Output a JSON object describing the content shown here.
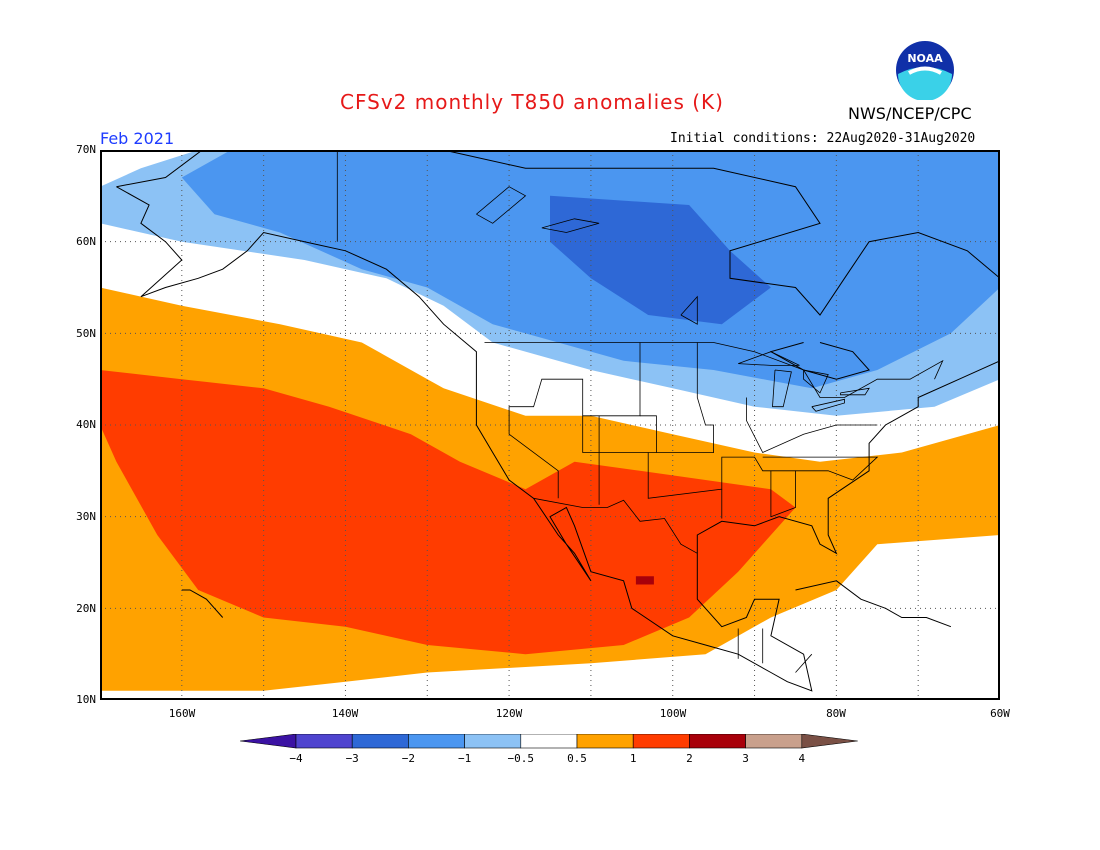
{
  "header": {
    "title": "CFSv2 monthly T850 anomalies (K)",
    "organization": "NWS/NCEP/CPC",
    "logo_text": "NOAA",
    "period": "Feb 2021",
    "initial_conditions": "Initial conditions: 22Aug2020-31Aug2020"
  },
  "axes": {
    "lat_labels": [
      "70N",
      "60N",
      "50N",
      "40N",
      "30N",
      "20N",
      "10N"
    ],
    "lon_labels": [
      "160W",
      "140W",
      "120W",
      "100W",
      "80W",
      "60W"
    ]
  },
  "colorbar": {
    "tick_labels": [
      "−4",
      "−3",
      "−2",
      "−1",
      "−0.5",
      "0.5",
      "1",
      "2",
      "3",
      "4"
    ],
    "colors": [
      "#3b12a3",
      "#4f44cf",
      "#2e68d6",
      "#4b96f0",
      "#8cc2f5",
      "#ffffff",
      "#ffa200",
      "#ff3c00",
      "#a8000a",
      "#c9a08c",
      "#7a5045"
    ]
  },
  "map_data": {
    "domain": {
      "lon": [
        -170,
        -60
      ],
      "lat": [
        10,
        70
      ]
    },
    "fill_color_by_level": {
      "n3": "#2e68d6",
      "n2": "#4b96f0",
      "n1": "#8cc2f5",
      "neutral": "#ffffff",
      "p1": "#ffa200",
      "p2": "#ff3c00",
      "p3": "#a8000a"
    },
    "anomaly_regions": [
      {
        "level": "n1",
        "polygon": [
          [
            -158,
            70
          ],
          [
            -60,
            70
          ],
          [
            -60,
            45
          ],
          [
            -68,
            42
          ],
          [
            -80,
            41
          ],
          [
            -90,
            42
          ],
          [
            -100,
            44
          ],
          [
            -110,
            46
          ],
          [
            -122,
            49
          ],
          [
            -128,
            53
          ],
          [
            -135,
            56
          ],
          [
            -145,
            58
          ],
          [
            -160,
            60
          ],
          [
            -170,
            62
          ],
          [
            -170,
            66
          ],
          [
            -165,
            68
          ]
        ]
      },
      {
        "level": "n2",
        "polygon": [
          [
            -154,
            70
          ],
          [
            -60,
            70
          ],
          [
            -60,
            55
          ],
          [
            -66,
            50
          ],
          [
            -75,
            46
          ],
          [
            -83,
            44
          ],
          [
            -95,
            46
          ],
          [
            -106,
            47
          ],
          [
            -114,
            49
          ],
          [
            -122,
            51
          ],
          [
            -130,
            55
          ],
          [
            -138,
            57
          ],
          [
            -148,
            61
          ],
          [
            -156,
            63
          ],
          [
            -160,
            67
          ]
        ]
      },
      {
        "level": "n3",
        "polygon": [
          [
            -115,
            65
          ],
          [
            -98,
            64
          ],
          [
            -93,
            59
          ],
          [
            -88,
            55
          ],
          [
            -94,
            51
          ],
          [
            -103,
            52
          ],
          [
            -110,
            56
          ],
          [
            -115,
            60
          ]
        ]
      },
      {
        "level": "p1",
        "polygon": [
          [
            -170,
            55
          ],
          [
            -160,
            53
          ],
          [
            -148,
            51
          ],
          [
            -138,
            49
          ],
          [
            -128,
            44
          ],
          [
            -118,
            41
          ],
          [
            -110,
            41
          ],
          [
            -100,
            39
          ],
          [
            -90,
            37
          ],
          [
            -82,
            36
          ],
          [
            -72,
            37
          ],
          [
            -60,
            40
          ],
          [
            -60,
            28
          ],
          [
            -75,
            27
          ],
          [
            -80,
            22
          ],
          [
            -88,
            19
          ],
          [
            -96,
            15
          ],
          [
            -110,
            14
          ],
          [
            -130,
            13
          ],
          [
            -140,
            12
          ],
          [
            -150,
            11
          ],
          [
            -170,
            11
          ]
        ]
      },
      {
        "level": "p2",
        "polygon": [
          [
            -170,
            46
          ],
          [
            -160,
            45
          ],
          [
            -150,
            44
          ],
          [
            -142,
            42
          ],
          [
            -132,
            39
          ],
          [
            -126,
            36
          ],
          [
            -118,
            33
          ],
          [
            -112,
            36
          ],
          [
            -104,
            35
          ],
          [
            -96,
            34
          ],
          [
            -88,
            33
          ],
          [
            -85,
            31
          ],
          [
            -88,
            28
          ],
          [
            -92,
            24
          ],
          [
            -98,
            19
          ],
          [
            -106,
            16
          ],
          [
            -118,
            15
          ],
          [
            -130,
            16
          ],
          [
            -140,
            18
          ],
          [
            -150,
            19
          ],
          [
            -158,
            22
          ],
          [
            -163,
            28
          ],
          [
            -168,
            36
          ],
          [
            -170,
            40
          ]
        ]
      },
      {
        "level": "p3",
        "polygon": [
          [
            -104.5,
            23.5
          ],
          [
            -102.3,
            23.5
          ],
          [
            -102.3,
            22.6
          ],
          [
            -104.5,
            22.6
          ]
        ]
      }
    ],
    "coastlines": [
      [
        [
          -168,
          66
        ],
        [
          -162,
          67
        ],
        [
          -156,
          71
        ],
        [
          -140,
          70
        ],
        [
          -128,
          70
        ],
        [
          -118,
          68
        ],
        [
          -105,
          68
        ],
        [
          -95,
          68
        ],
        [
          -85,
          66
        ],
        [
          -82,
          62
        ],
        [
          -93,
          59
        ],
        [
          -93,
          56
        ],
        [
          -85,
          55
        ],
        [
          -82,
          52
        ],
        [
          -79,
          56
        ],
        [
          -76,
          60
        ],
        [
          -70,
          61
        ],
        [
          -64,
          59
        ],
        [
          -60,
          56
        ],
        [
          -57,
          52
        ],
        [
          -60,
          47
        ],
        [
          -65,
          45
        ],
        [
          -70,
          43
        ],
        [
          -70,
          42
        ],
        [
          -74,
          40
        ],
        [
          -76,
          38
        ],
        [
          -76,
          35
        ],
        [
          -81,
          32
        ],
        [
          -81,
          28
        ],
        [
          -80,
          26
        ],
        [
          -82,
          27
        ],
        [
          -83,
          29
        ],
        [
          -87,
          30
        ],
        [
          -90,
          29
        ],
        [
          -94,
          29.5
        ],
        [
          -97,
          28
        ],
        [
          -97,
          25
        ],
        [
          -97,
          21
        ],
        [
          -94,
          18
        ],
        [
          -91,
          19
        ],
        [
          -90,
          21
        ],
        [
          -87,
          21
        ],
        [
          -88,
          17
        ],
        [
          -84,
          15
        ],
        [
          -83,
          11
        ],
        [
          -86,
          12
        ],
        [
          -88,
          13
        ],
        [
          -92,
          15
        ],
        [
          -96,
          16
        ],
        [
          -100,
          17
        ],
        [
          -105,
          20
        ],
        [
          -106,
          23
        ],
        [
          -110,
          24
        ],
        [
          -112,
          29
        ],
        [
          -113,
          31
        ],
        [
          -115,
          30
        ],
        [
          -113,
          27
        ],
        [
          -110,
          23
        ],
        [
          -112,
          26
        ],
        [
          -114,
          28
        ],
        [
          -117,
          32
        ],
        [
          -120,
          34
        ],
        [
          -122,
          37
        ],
        [
          -124,
          40
        ],
        [
          -124,
          46
        ],
        [
          -124,
          48
        ],
        [
          -128,
          51
        ],
        [
          -131,
          54
        ],
        [
          -135,
          57
        ],
        [
          -140,
          59
        ],
        [
          -145,
          60
        ],
        [
          -150,
          61
        ],
        [
          -152,
          59
        ],
        [
          -155,
          57
        ],
        [
          -158,
          56
        ],
        [
          -162,
          55
        ],
        [
          -165,
          54
        ],
        [
          -160,
          58
        ],
        [
          -162,
          60
        ],
        [
          -165,
          62
        ],
        [
          -164,
          64
        ],
        [
          -168,
          66
        ]
      ],
      [
        [
          -160,
          22
        ],
        [
          -159,
          22
        ],
        [
          -157,
          21
        ],
        [
          -156,
          20
        ],
        [
          -155,
          19
        ]
      ],
      [
        [
          -85,
          22
        ],
        [
          -80,
          23
        ],
        [
          -77,
          21
        ],
        [
          -74,
          20
        ],
        [
          -72,
          19
        ],
        [
          -69,
          19
        ],
        [
          -66,
          18
        ]
      ],
      [
        [
          -82,
          49
        ],
        [
          -78,
          48
        ],
        [
          -76,
          46
        ],
        [
          -80,
          45
        ],
        [
          -84,
          46
        ],
        [
          -88,
          48
        ],
        [
          -84,
          49
        ]
      ]
    ],
    "borders": [
      [
        [
          -141,
          60
        ],
        [
          -141,
          70
        ]
      ],
      [
        [
          -123,
          49
        ],
        [
          -95,
          49
        ],
        [
          -90,
          48
        ],
        [
          -84,
          46
        ],
        [
          -82,
          43
        ],
        [
          -79,
          43
        ],
        [
          -75,
          45
        ],
        [
          -71,
          45
        ],
        [
          -67,
          47
        ],
        [
          -68,
          45
        ]
      ],
      [
        [
          -117,
          32
        ],
        [
          -111,
          31
        ],
        [
          -108,
          31
        ],
        [
          -106,
          31.8
        ],
        [
          -104,
          29.5
        ],
        [
          -101,
          29.8
        ],
        [
          -99,
          27
        ],
        [
          -97,
          26
        ]
      ],
      [
        [
          -104,
          49
        ],
        [
          -104,
          41
        ],
        [
          -111,
          41
        ],
        [
          -111,
          45
        ],
        [
          -116,
          45
        ],
        [
          -117,
          42
        ],
        [
          -120,
          42
        ],
        [
          -120,
          39
        ],
        [
          -114,
          35
        ],
        [
          -114,
          32
        ]
      ],
      [
        [
          -111,
          41
        ],
        [
          -111,
          37
        ],
        [
          -102,
          37
        ],
        [
          -102,
          41
        ],
        [
          -104,
          41
        ]
      ],
      [
        [
          -109,
          41
        ],
        [
          -109,
          31.3
        ]
      ],
      [
        [
          -103,
          37
        ],
        [
          -103,
          32
        ],
        [
          -94,
          33
        ],
        [
          -94,
          36.5
        ],
        [
          -90,
          36.5
        ],
        [
          -89,
          35
        ],
        [
          -85,
          35
        ],
        [
          -85,
          31
        ],
        [
          -88,
          30
        ]
      ],
      [
        [
          -97,
          49
        ],
        [
          -97,
          43
        ],
        [
          -96,
          40
        ],
        [
          -95,
          40
        ],
        [
          -95,
          37
        ],
        [
          -102,
          37
        ]
      ],
      [
        [
          -91,
          43
        ],
        [
          -91,
          40.5
        ],
        [
          -89,
          37
        ],
        [
          -84,
          39
        ],
        [
          -80,
          40
        ],
        [
          -75,
          40
        ]
      ],
      [
        [
          -85,
          35
        ],
        [
          -81,
          35
        ],
        [
          -78,
          34
        ],
        [
          -75,
          36.5
        ],
        [
          -83,
          36.5
        ],
        [
          -89,
          36.5
        ]
      ],
      [
        [
          -88,
          30
        ],
        [
          -88,
          35
        ]
      ],
      [
        [
          -94,
          33
        ],
        [
          -94,
          29.8
        ]
      ],
      [
        [
          -92,
          17.8
        ],
        [
          -92,
          14.5
        ]
      ],
      [
        [
          -89,
          17.8
        ],
        [
          -89,
          14
        ]
      ],
      [
        [
          -85,
          13
        ],
        [
          -83,
          15
        ]
      ]
    ],
    "lakes": [
      [
        [
          -92,
          46.7
        ],
        [
          -88,
          48
        ],
        [
          -84.5,
          46.5
        ],
        [
          -88,
          46.5
        ],
        [
          -92,
          46.7
        ]
      ],
      [
        [
          -87.5,
          46
        ],
        [
          -85.5,
          45.8
        ],
        [
          -86.5,
          42
        ],
        [
          -87.8,
          42
        ],
        [
          -87.5,
          46
        ]
      ],
      [
        [
          -84,
          46
        ],
        [
          -81,
          45.5
        ],
        [
          -82,
          43.5
        ],
        [
          -84,
          45
        ],
        [
          -84,
          46
        ]
      ],
      [
        [
          -83,
          42
        ],
        [
          -79,
          42.8
        ],
        [
          -79,
          42.4
        ],
        [
          -82.5,
          41.5
        ],
        [
          -83,
          42
        ]
      ],
      [
        [
          -79.5,
          43.5
        ],
        [
          -76,
          44
        ],
        [
          -76.5,
          43.3
        ],
        [
          -79.5,
          43.3
        ],
        [
          -79.5,
          43.5
        ]
      ],
      [
        [
          -124,
          63
        ],
        [
          -120,
          66
        ],
        [
          -118,
          65
        ],
        [
          -122,
          62
        ],
        [
          -124,
          63
        ]
      ],
      [
        [
          -116,
          61.5
        ],
        [
          -112,
          62.5
        ],
        [
          -109,
          62
        ],
        [
          -113,
          61
        ],
        [
          -116,
          61.5
        ]
      ],
      [
        [
          -99,
          52
        ],
        [
          -97,
          54
        ],
        [
          -97,
          51
        ],
        [
          -99,
          52
        ]
      ]
    ]
  }
}
